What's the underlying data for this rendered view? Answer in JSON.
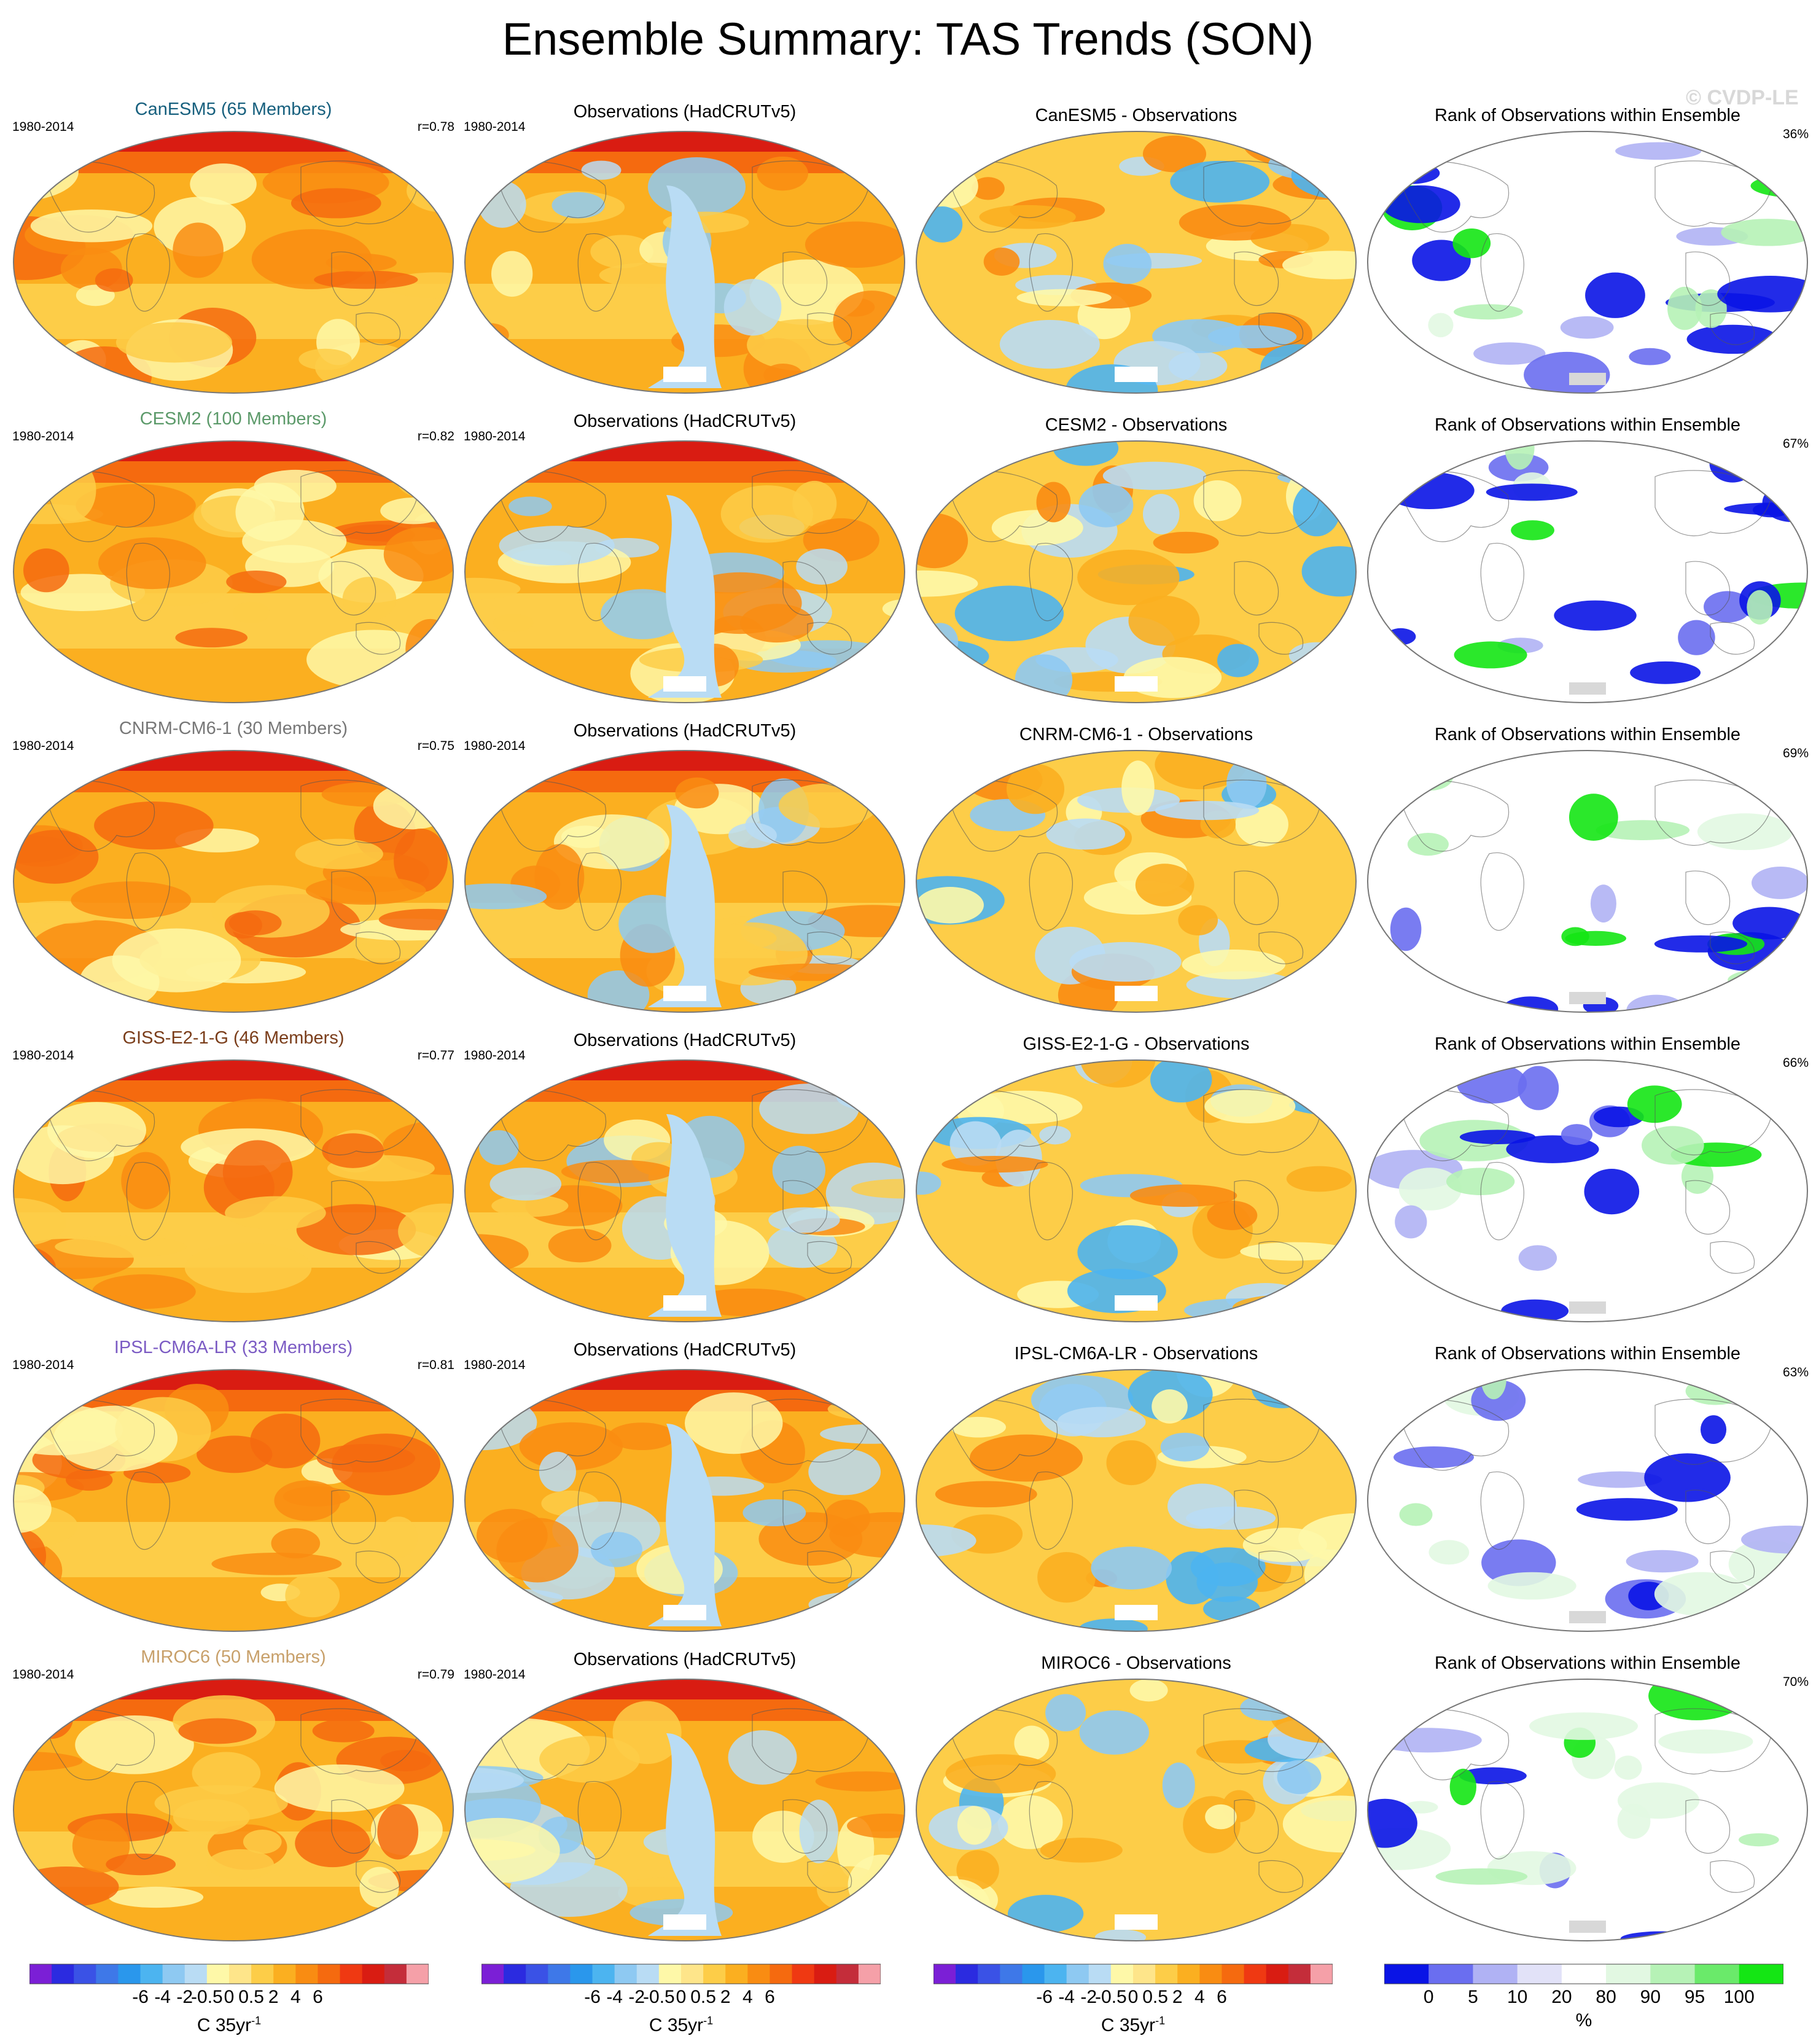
{
  "title": "Ensemble Summary: TAS Trends (SON)",
  "watermark": "© CVDP-LE",
  "period": "1980-2014",
  "obs_title": "Observations (HadCRUTv5)",
  "rank_title": "Rank of Observations within Ensemble",
  "rows": [
    {
      "model_title": "CanESM5 (65 Members)",
      "model_color": "#17607e",
      "r": "r=0.78",
      "diff_title": "CanESM5 - Observations",
      "rank_pct": "36%"
    },
    {
      "model_title": "CESM2 (100 Members)",
      "model_color": "#5c9a6a",
      "r": "r=0.82",
      "diff_title": "CESM2 - Observations",
      "rank_pct": "67%"
    },
    {
      "model_title": "CNRM-CM6-1 (30 Members)",
      "model_color": "#777777",
      "r": "r=0.75",
      "diff_title": "CNRM-CM6-1 - Observations",
      "rank_pct": "69%"
    },
    {
      "model_title": "GISS-E2-1-G (46 Members)",
      "model_color": "#7a3d1a",
      "r": "r=0.77",
      "diff_title": "GISS-E2-1-G - Observations",
      "rank_pct": "66%"
    },
    {
      "model_title": "IPSL-CM6A-LR (33 Members)",
      "model_color": "#7c5cc4",
      "r": "r=0.81",
      "diff_title": "IPSL-CM6A-LR - Observations",
      "rank_pct": "63%"
    },
    {
      "model_title": "MIROC6 (50 Members)",
      "model_color": "#c8a06a",
      "r": "r=0.79",
      "diff_title": "MIROC6 - Observations",
      "rank_pct": "70%"
    }
  ],
  "colorbars": {
    "trend": {
      "colors": [
        "#7b1fd6",
        "#2b2be0",
        "#3a52e6",
        "#3e78e8",
        "#2a97ec",
        "#4cb4f0",
        "#8ec9f2",
        "#b9dcf4",
        "#fef8a8",
        "#fee58a",
        "#fdcd48",
        "#fbaf20",
        "#f98c12",
        "#f56a0f",
        "#ef3912",
        "#d91c12",
        "#c42d3a",
        "#f5a0a8"
      ],
      "tick_labels": [
        "-6",
        "-4",
        "-2",
        "-0.5",
        "0",
        "0.5",
        "2",
        "4",
        "6"
      ],
      "units_base": "C 35yr",
      "units_sup": "-1"
    },
    "rank": {
      "colors": [
        "#0a14e6",
        "#6a6ef0",
        "#b0b2f4",
        "#e2e2f8",
        "#ffffff",
        "#e2f8e2",
        "#b6f2b6",
        "#6aea6a",
        "#14e614"
      ],
      "tick_labels": [
        "0",
        "5",
        "10",
        "20",
        "80",
        "90",
        "95",
        "100"
      ],
      "units": "%"
    }
  }
}
